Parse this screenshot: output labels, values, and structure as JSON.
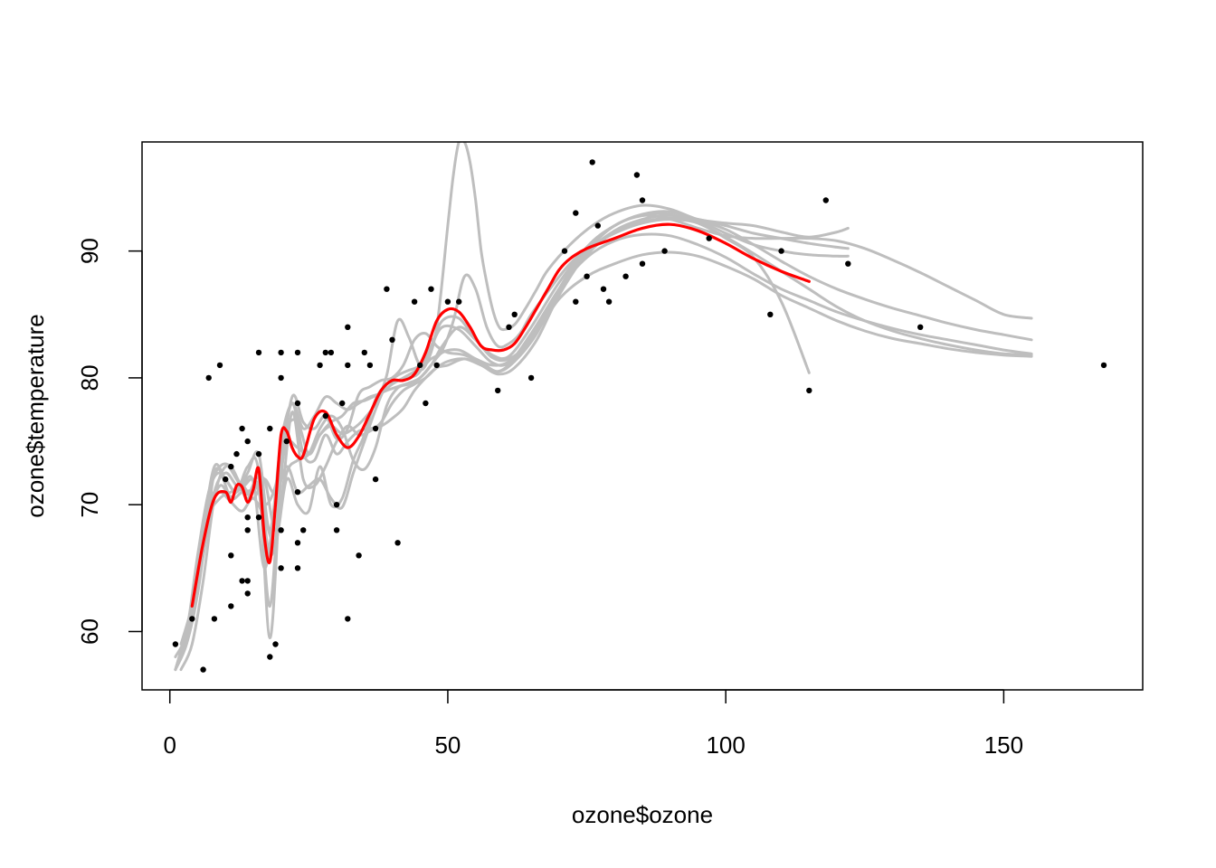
{
  "chart_data": {
    "type": "scatter",
    "title": "",
    "xlabel": "ozone$ozone",
    "ylabel": "ozone$temperature",
    "xlim": [
      -5,
      175
    ],
    "ylim": [
      55.4,
      98.6
    ],
    "xticks": [
      0,
      50,
      100,
      150
    ],
    "yticks": [
      60,
      70,
      80,
      90
    ],
    "grid": false,
    "colors": {
      "points": "#000000",
      "bootstrap": "#bebebe",
      "fit": "#ff0000"
    },
    "points": [
      [
        1,
        59
      ],
      [
        4,
        61
      ],
      [
        6,
        57
      ],
      [
        7,
        80
      ],
      [
        8,
        61
      ],
      [
        9,
        81
      ],
      [
        10,
        72
      ],
      [
        11,
        73
      ],
      [
        11,
        66
      ],
      [
        11,
        62
      ],
      [
        12,
        74
      ],
      [
        13,
        76
      ],
      [
        13,
        64
      ],
      [
        14,
        64
      ],
      [
        14,
        69
      ],
      [
        14,
        63
      ],
      [
        14,
        75
      ],
      [
        14,
        68
      ],
      [
        16,
        82
      ],
      [
        16,
        74
      ],
      [
        16,
        69
      ],
      [
        18,
        58
      ],
      [
        18,
        76
      ],
      [
        19,
        59
      ],
      [
        20,
        82
      ],
      [
        20,
        80
      ],
      [
        20,
        68
      ],
      [
        20,
        65
      ],
      [
        21,
        75
      ],
      [
        23,
        82
      ],
      [
        23,
        78
      ],
      [
        23,
        71
      ],
      [
        23,
        67
      ],
      [
        23,
        65
      ],
      [
        24,
        68
      ],
      [
        27,
        81
      ],
      [
        28,
        82
      ],
      [
        28,
        77
      ],
      [
        29,
        82
      ],
      [
        30,
        70
      ],
      [
        30,
        68
      ],
      [
        31,
        78
      ],
      [
        32,
        84
      ],
      [
        32,
        81
      ],
      [
        32,
        61
      ],
      [
        34,
        66
      ],
      [
        35,
        82
      ],
      [
        36,
        81
      ],
      [
        37,
        76
      ],
      [
        37,
        72
      ],
      [
        39,
        87
      ],
      [
        40,
        83
      ],
      [
        41,
        67
      ],
      [
        44,
        86
      ],
      [
        45,
        81
      ],
      [
        46,
        78
      ],
      [
        47,
        87
      ],
      [
        48,
        81
      ],
      [
        50,
        86
      ],
      [
        52,
        86
      ],
      [
        59,
        79
      ],
      [
        61,
        84
      ],
      [
        62,
        85
      ],
      [
        65,
        80
      ],
      [
        71,
        90
      ],
      [
        73,
        93
      ],
      [
        73,
        86
      ],
      [
        75,
        88
      ],
      [
        76,
        97
      ],
      [
        77,
        92
      ],
      [
        78,
        87
      ],
      [
        79,
        86
      ],
      [
        82,
        88
      ],
      [
        84,
        96
      ],
      [
        85,
        94
      ],
      [
        85,
        89
      ],
      [
        89,
        90
      ],
      [
        97,
        91
      ],
      [
        108,
        85
      ],
      [
        110,
        90
      ],
      [
        115,
        79
      ],
      [
        118,
        94
      ],
      [
        122,
        89
      ],
      [
        135,
        84
      ],
      [
        168,
        81
      ]
    ],
    "series": [
      {
        "role": "fit",
        "x": [
          4,
          6,
          8,
          10,
          11,
          12,
          13,
          14,
          15,
          16,
          17,
          18,
          19,
          20,
          21,
          22,
          23,
          24,
          26,
          28,
          30,
          32,
          34,
          36,
          38,
          40,
          42,
          44,
          46,
          48,
          50,
          52,
          54,
          56,
          58,
          60,
          62,
          64,
          66,
          68,
          70,
          72,
          75,
          80,
          85,
          90,
          95,
          100,
          105,
          110,
          115
        ],
        "values": [
          62,
          67,
          70.5,
          71,
          70.2,
          71.5,
          71.4,
          70.2,
          71.2,
          72.8,
          67.5,
          65.5,
          70,
          75.5,
          75.8,
          74.5,
          73.8,
          73.9,
          76.8,
          77.3,
          75.5,
          74.5,
          75.4,
          77.2,
          79,
          79.8,
          79.8,
          80.3,
          82,
          84.5,
          85.4,
          85.2,
          84,
          82.5,
          82.2,
          82.2,
          82.7,
          84,
          85.5,
          87,
          88.5,
          89.4,
          90.2,
          91,
          91.8,
          92.1,
          91.6,
          90.6,
          89.4,
          88.4,
          87.6
        ]
      },
      {
        "role": "bootstrap",
        "x": [
          1,
          3,
          5,
          7,
          9,
          11,
          13,
          15,
          17,
          19,
          21,
          23,
          25,
          27,
          29,
          31,
          33,
          35,
          37,
          39,
          41,
          43,
          45,
          47,
          49,
          51,
          53,
          55,
          57,
          59,
          61,
          63,
          65,
          68,
          72,
          76,
          80,
          85,
          90,
          95,
          100,
          105,
          110,
          115
        ],
        "values": [
          57,
          60,
          63,
          69,
          71.5,
          70.6,
          71.5,
          70.5,
          72,
          71,
          74.8,
          74.5,
          74,
          75.5,
          76.2,
          75.6,
          76,
          76.8,
          78,
          80.2,
          84.5,
          83.2,
          81,
          81.5,
          82.2,
          84.5,
          88,
          87,
          84,
          82.5,
          82.7,
          83.5,
          85,
          86.8,
          89,
          90.4,
          91.4,
          92.2,
          92.5,
          92.2,
          91,
          89.5,
          86,
          80.4
        ]
      },
      {
        "role": "bootstrap",
        "x": [
          2,
          4,
          6,
          8,
          10,
          12,
          14,
          16,
          18,
          20,
          22,
          24,
          26,
          28,
          30,
          32,
          34,
          36,
          38,
          40,
          42,
          44,
          46,
          48,
          50,
          51,
          52,
          53,
          54,
          55,
          56,
          57,
          58,
          59,
          60,
          62,
          64,
          66,
          68,
          72,
          76,
          80,
          85,
          90,
          95,
          100,
          105,
          110,
          115,
          120,
          122
        ],
        "values": [
          58,
          62,
          68,
          73,
          72,
          71,
          72.5,
          74,
          68,
          75,
          78,
          76,
          77,
          78.5,
          78,
          77.5,
          78,
          78.5,
          78.8,
          79.5,
          80,
          80.5,
          81,
          84,
          92,
          96,
          98.6,
          98.6,
          97,
          94,
          90,
          87.5,
          85.5,
          84.2,
          83.8,
          84.2,
          85.5,
          87,
          88.5,
          90.5,
          92,
          93,
          93.6,
          93.3,
          92.5,
          92.2,
          92,
          91.5,
          91.1,
          91.5,
          91.8
        ]
      },
      {
        "role": "bootstrap",
        "x": [
          1,
          3,
          5,
          7,
          9,
          11,
          13,
          15,
          17,
          19,
          21,
          23,
          25,
          27,
          29,
          31,
          33,
          35,
          37,
          39,
          41,
          43,
          45,
          47,
          49,
          52,
          55,
          58,
          61,
          65,
          70,
          75,
          80,
          85,
          90,
          95,
          100,
          105,
          110,
          115,
          120,
          125,
          130,
          135,
          140,
          145,
          150,
          155
        ],
        "values": [
          58,
          60,
          66,
          71,
          72.5,
          70.5,
          71,
          71.2,
          72,
          68,
          72.5,
          73.5,
          74,
          76,
          77,
          76,
          73.5,
          72.8,
          74.5,
          77.8,
          79.2,
          79.5,
          80,
          81,
          82,
          82.2,
          81.5,
          81,
          81.3,
          83,
          86.2,
          88,
          89,
          89.7,
          89.9,
          89.6,
          88.8,
          87.8,
          86.5,
          85.5,
          84.5,
          83.7,
          83.1,
          82.7,
          82.3,
          82,
          81.8,
          81.7
        ]
      },
      {
        "role": "bootstrap",
        "x": [
          2,
          4,
          6,
          8,
          10,
          12,
          14,
          16,
          18,
          20,
          22,
          24,
          26,
          28,
          30,
          32,
          34,
          36,
          38,
          40,
          42,
          44,
          46,
          48,
          50,
          53,
          56,
          59,
          62,
          66,
          70,
          75,
          80,
          85,
          90,
          95,
          100,
          105,
          110,
          115,
          120,
          125,
          130,
          135,
          140,
          145,
          150,
          155
        ],
        "values": [
          57,
          59,
          64,
          70.5,
          73,
          72,
          70.5,
          72,
          66,
          70,
          77.3,
          72,
          71.5,
          73,
          75,
          76.2,
          75.5,
          75.8,
          76.5,
          78,
          79,
          79.5,
          80,
          80.8,
          81.3,
          81.5,
          81,
          80.5,
          81.5,
          84,
          87,
          89.5,
          90.8,
          91.3,
          91.2,
          90.5,
          89.5,
          88.2,
          87,
          86.1,
          85.2,
          84.5,
          83.9,
          83.4,
          83,
          82.6,
          82.2,
          81.9
        ]
      },
      {
        "role": "bootstrap",
        "x": [
          1,
          3,
          5,
          7,
          9,
          11,
          13,
          15,
          17,
          19,
          21,
          23,
          25,
          27,
          29,
          31,
          33,
          35,
          37,
          39,
          41,
          43,
          45,
          47,
          49,
          52,
          55,
          58,
          61,
          65,
          70,
          75,
          80,
          85,
          90,
          95,
          100,
          105,
          110,
          115,
          120,
          125,
          130,
          135,
          140,
          145,
          150,
          155
        ],
        "values": [
          57,
          59.5,
          65,
          71,
          73,
          73,
          71.5,
          72,
          70,
          71.5,
          76,
          76.5,
          74,
          75.5,
          76.5,
          77,
          78,
          78.2,
          78.6,
          79,
          79.3,
          79.6,
          80,
          81,
          82.5,
          84,
          83,
          81.6,
          81.5,
          83,
          86.8,
          89.7,
          91.5,
          92.3,
          92.6,
          92.4,
          91.7,
          90.5,
          89.2,
          88,
          87,
          86.2,
          85.5,
          84.9,
          84.3,
          83.8,
          83.4,
          83
        ]
      },
      {
        "role": "bootstrap",
        "x": [
          2,
          4,
          6,
          8,
          10,
          12,
          14,
          16,
          18,
          20,
          22,
          24,
          26,
          28,
          30,
          32,
          34,
          36,
          38,
          40,
          42,
          44,
          46,
          48,
          50,
          53,
          56,
          59,
          62,
          66,
          70,
          75,
          80,
          85,
          90,
          95,
          100,
          105,
          110,
          115,
          120,
          125,
          130,
          135,
          140,
          145,
          150,
          155
        ],
        "values": [
          59,
          62,
          66,
          72.5,
          72,
          71,
          73,
          72.5,
          59.5,
          72,
          78.5,
          76.5,
          76,
          77,
          75.2,
          76,
          78.7,
          79.3,
          79.8,
          80,
          81,
          83,
          83.5,
          82.5,
          82,
          81.8,
          81.2,
          80.5,
          81.3,
          83.5,
          87,
          90.3,
          92,
          92.8,
          92.5,
          91.8,
          91.2,
          91,
          91,
          91,
          90.8,
          90.2,
          89.3,
          88.3,
          87.2,
          86.1,
          85,
          84.7
        ]
      },
      {
        "role": "bootstrap",
        "x": [
          1,
          3,
          5,
          7,
          9,
          11,
          13,
          15,
          17,
          19,
          21,
          23,
          25,
          27,
          29,
          31,
          33,
          35,
          37,
          39,
          41,
          43,
          45,
          47,
          49,
          52,
          55,
          58,
          61,
          65,
          70,
          75,
          80,
          85,
          90,
          95,
          100,
          105,
          110,
          115,
          120,
          122
        ],
        "values": [
          57,
          59,
          63,
          70,
          71,
          70.2,
          69.5,
          70.5,
          69,
          67,
          72,
          70,
          69.5,
          73,
          70,
          70.5,
          73.5,
          75.5,
          78.3,
          79.5,
          79.8,
          80,
          80.5,
          82.5,
          84.5,
          84.7,
          83,
          81.8,
          81.7,
          84,
          87.5,
          90.3,
          92,
          92.9,
          93.1,
          92.4,
          91.4,
          90.5,
          90,
          89.7,
          89.6,
          89.6
        ]
      },
      {
        "role": "bootstrap",
        "x": [
          2,
          4,
          6,
          8,
          10,
          12,
          14,
          16,
          18,
          20,
          22,
          24,
          26,
          28,
          30,
          32,
          34,
          36,
          38,
          40,
          42,
          44,
          46,
          48,
          50,
          53,
          56,
          59,
          62,
          66,
          70,
          75,
          80,
          85,
          90,
          95,
          100,
          105,
          110,
          115,
          120,
          122
        ],
        "values": [
          58,
          61,
          66,
          71,
          72.5,
          71.5,
          70.8,
          71.3,
          62,
          73,
          78,
          74,
          73.5,
          75.5,
          74,
          75,
          75.8,
          76,
          76.2,
          76.8,
          77.6,
          79,
          80,
          80.8,
          81,
          81.5,
          81,
          80.3,
          80.8,
          83,
          86.5,
          89.8,
          91.6,
          92.5,
          92.8,
          92.5,
          92,
          91.4,
          91,
          90.6,
          90.3,
          90.2
        ]
      },
      {
        "role": "bootstrap",
        "x": [
          1,
          3,
          5,
          7,
          9,
          11,
          13,
          15,
          17,
          19,
          21,
          23,
          25,
          27,
          29,
          31,
          33,
          35,
          37,
          39,
          41,
          43,
          45,
          47,
          49,
          52,
          55,
          58,
          61,
          65,
          70,
          75,
          80,
          85,
          90,
          95,
          100,
          105,
          110,
          115,
          120,
          125,
          130,
          135,
          140,
          145,
          150,
          155
        ],
        "values": [
          57,
          60,
          64,
          69,
          70.5,
          71,
          71.5,
          71.8,
          65,
          70,
          73,
          71,
          71.5,
          72,
          70.5,
          69.8,
          72.5,
          75,
          77.5,
          79.5,
          80.2,
          80.6,
          81,
          82.5,
          84,
          83.8,
          82.5,
          81.2,
          81.2,
          83.5,
          87,
          90,
          92,
          92.8,
          92.9,
          92.2,
          91.1,
          89.8,
          88.4,
          87,
          85.6,
          84.5,
          83.7,
          83.1,
          82.6,
          82.2,
          81.9,
          81.8
        ]
      }
    ]
  }
}
